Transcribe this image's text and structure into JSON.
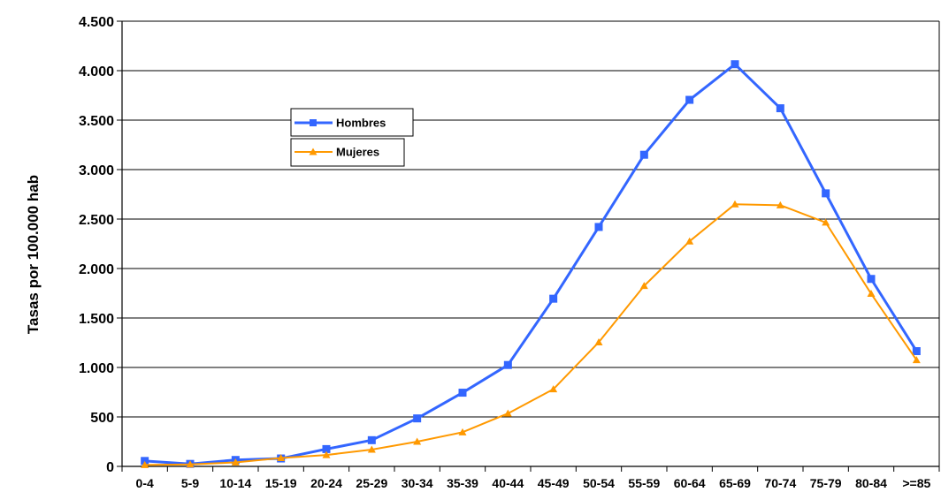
{
  "chart_data": {
    "type": "line",
    "title": "",
    "xlabel": "",
    "ylabel": "Tasas  por 100.000 hab",
    "categories": [
      "0-4",
      "5-9",
      "10-14",
      "15-19",
      "20-24",
      "25-29",
      "30-34",
      "35-39",
      "40-44",
      "45-49",
      "50-54",
      "55-59",
      "60-64",
      "65-69",
      "70-74",
      "75-79",
      "80-84",
      ">=85"
    ],
    "yticks": [
      0,
      500,
      1000,
      1500,
      2000,
      2500,
      3000,
      3500,
      4000,
      4500
    ],
    "ytick_labels": [
      "0",
      "500",
      "1.000",
      "1.500",
      "2.000",
      "2.500",
      "3.000",
      "3.500",
      "4.000",
      "4.500"
    ],
    "ylim": [
      0,
      4500
    ],
    "grid": true,
    "legend_position": "top-left",
    "series": [
      {
        "name": "Hombres",
        "color": "#3366ff",
        "marker": "square",
        "values": [
          55,
          25,
          65,
          80,
          175,
          265,
          485,
          745,
          1025,
          1695,
          2420,
          3150,
          3705,
          4065,
          3620,
          2760,
          1895,
          1165
        ]
      },
      {
        "name": "Mujeres",
        "color": "#ff9900",
        "marker": "triangle",
        "values": [
          15,
          20,
          40,
          85,
          115,
          170,
          250,
          345,
          535,
          780,
          1255,
          1825,
          2275,
          2650,
          2640,
          2465,
          1745,
          1075
        ]
      }
    ]
  }
}
